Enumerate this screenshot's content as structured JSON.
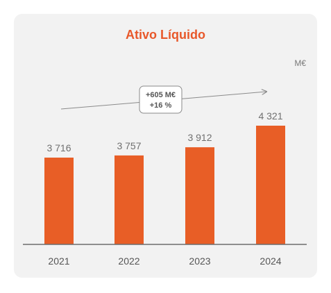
{
  "chart_data": {
    "type": "bar",
    "title": "Ativo Líquido",
    "unit": "M€",
    "categories": [
      "2021",
      "2022",
      "2023",
      "2024"
    ],
    "values": [
      3716,
      3757,
      3912,
      4321
    ],
    "value_labels": [
      "3 716",
      "3 757",
      "3 912",
      "4 321"
    ],
    "annotation": {
      "line1": "+605 M€",
      "line2": "+16 %"
    },
    "grid": false,
    "colors": {
      "bar": "#e85e26",
      "title": "#e8582a",
      "axis": "#6d6d6d"
    }
  }
}
